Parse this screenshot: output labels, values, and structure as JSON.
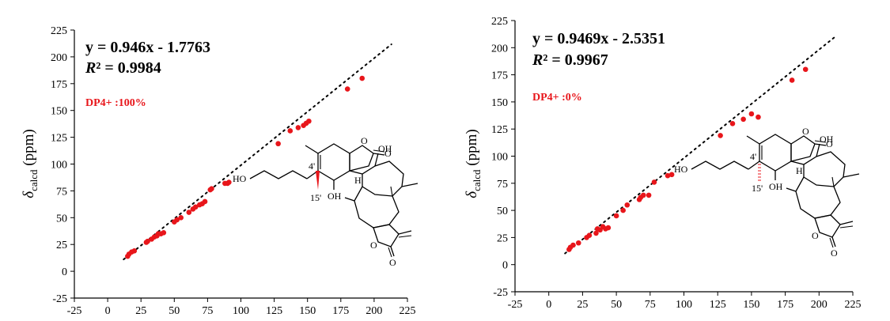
{
  "chart_data": [
    {
      "type": "scatter",
      "ylabel_symbol": "δ",
      "ylabel_sub": "calcd",
      "ylabel_unit": "(ppm)",
      "equation": "y = 0.946x - 1.7763",
      "r2_prefix": "R",
      "r2_rest": "² = 0.9984",
      "dp4": "DP4+ :100%",
      "fit": {
        "slope": 0.946,
        "intercept": -1.7763
      },
      "xlim": [
        -25,
        225
      ],
      "ylim": [
        -25,
        225
      ],
      "xticks": [
        "-25",
        "0",
        "25",
        "50",
        "75",
        "100",
        "125",
        "150",
        "175",
        "200",
        "225"
      ],
      "yticks": [
        "-25",
        "0",
        "25",
        "50",
        "75",
        "100",
        "125",
        "150",
        "175",
        "200",
        "225"
      ],
      "mol_labels": {
        "ho": "HO",
        "oh1": "OH",
        "oh2": "OH",
        "h": "H",
        "c4": "4'",
        "c15": "15'",
        "o1": "O",
        "o2": "O",
        "o3": "O",
        "o4": "O"
      },
      "points": [
        {
          "x": 15,
          "y": 14
        },
        {
          "x": 16,
          "y": 16
        },
        {
          "x": 18,
          "y": 18
        },
        {
          "x": 20,
          "y": 19
        },
        {
          "x": 29,
          "y": 27
        },
        {
          "x": 30,
          "y": 28
        },
        {
          "x": 33,
          "y": 30
        },
        {
          "x": 35,
          "y": 32
        },
        {
          "x": 37,
          "y": 33
        },
        {
          "x": 38,
          "y": 35
        },
        {
          "x": 40,
          "y": 35
        },
        {
          "x": 42,
          "y": 36
        },
        {
          "x": 50,
          "y": 46
        },
        {
          "x": 52,
          "y": 48
        },
        {
          "x": 55,
          "y": 50
        },
        {
          "x": 61,
          "y": 55
        },
        {
          "x": 64,
          "y": 58
        },
        {
          "x": 66,
          "y": 60
        },
        {
          "x": 69,
          "y": 62
        },
        {
          "x": 71,
          "y": 63
        },
        {
          "x": 73,
          "y": 65
        },
        {
          "x": 77,
          "y": 76
        },
        {
          "x": 78,
          "y": 77
        },
        {
          "x": 88,
          "y": 82
        },
        {
          "x": 90,
          "y": 82
        },
        {
          "x": 91,
          "y": 83
        },
        {
          "x": 128,
          "y": 119
        },
        {
          "x": 137,
          "y": 131
        },
        {
          "x": 143,
          "y": 134
        },
        {
          "x": 147,
          "y": 136
        },
        {
          "x": 149,
          "y": 138
        },
        {
          "x": 151,
          "y": 140
        },
        {
          "x": 180,
          "y": 170
        },
        {
          "x": 191,
          "y": 180
        }
      ]
    },
    {
      "type": "scatter",
      "ylabel_symbol": "δ",
      "ylabel_sub": "calcd",
      "ylabel_unit": "(ppm)",
      "equation": "y = 0.9469x - 2.5351",
      "r2_prefix": "R",
      "r2_rest": "² = 0.9967",
      "dp4": "DP4+ :0%",
      "fit": {
        "slope": 0.9469,
        "intercept": -2.5351
      },
      "xlim": [
        -25,
        225
      ],
      "ylim": [
        -25,
        225
      ],
      "xticks": [
        "-25",
        "0",
        "25",
        "50",
        "75",
        "100",
        "125",
        "150",
        "175",
        "200",
        "225"
      ],
      "yticks": [
        "-25",
        "0",
        "25",
        "50",
        "75",
        "100",
        "125",
        "150",
        "175",
        "200",
        "225"
      ],
      "mol_labels": {
        "ho": "HO",
        "oh1": "OH",
        "oh2": "OH",
        "h": "H",
        "c4": "4'",
        "c15": "15'",
        "o1": "O",
        "o2": "O",
        "o3": "O",
        "o4": "O"
      },
      "points": [
        {
          "x": 15,
          "y": 14
        },
        {
          "x": 16,
          "y": 16
        },
        {
          "x": 18,
          "y": 18
        },
        {
          "x": 22,
          "y": 20
        },
        {
          "x": 28,
          "y": 25
        },
        {
          "x": 30,
          "y": 27
        },
        {
          "x": 35,
          "y": 29
        },
        {
          "x": 36,
          "y": 33
        },
        {
          "x": 38,
          "y": 32
        },
        {
          "x": 40,
          "y": 35
        },
        {
          "x": 42,
          "y": 33
        },
        {
          "x": 44,
          "y": 34
        },
        {
          "x": 50,
          "y": 45
        },
        {
          "x": 55,
          "y": 50
        },
        {
          "x": 58,
          "y": 55
        },
        {
          "x": 67,
          "y": 60
        },
        {
          "x": 68,
          "y": 62
        },
        {
          "x": 70,
          "y": 64
        },
        {
          "x": 74,
          "y": 64
        },
        {
          "x": 78,
          "y": 76
        },
        {
          "x": 88,
          "y": 82
        },
        {
          "x": 91,
          "y": 83
        },
        {
          "x": 127,
          "y": 119
        },
        {
          "x": 136,
          "y": 130
        },
        {
          "x": 144,
          "y": 134
        },
        {
          "x": 150,
          "y": 139
        },
        {
          "x": 155,
          "y": 136
        },
        {
          "x": 180,
          "y": 170
        },
        {
          "x": 190,
          "y": 180
        }
      ]
    }
  ]
}
